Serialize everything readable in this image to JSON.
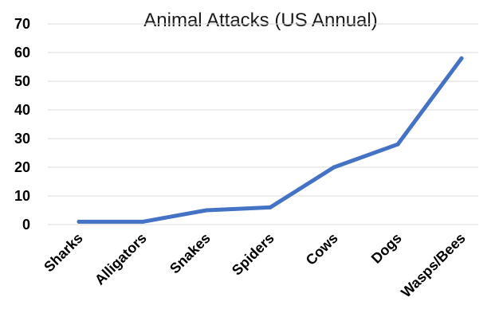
{
  "chart_data": {
    "type": "line",
    "title": "Animal Attacks (US Annual)",
    "xlabel": "",
    "ylabel": "",
    "categories": [
      "Sharks",
      "Alligators",
      "Snakes",
      "Spiders",
      "Cows",
      "Dogs",
      "Wasps/Bees"
    ],
    "series": [
      {
        "values": [
          1,
          1,
          5,
          6,
          20,
          28,
          58
        ],
        "color": "#4472C4"
      }
    ],
    "ylim": [
      0,
      70
    ],
    "yticks": [
      0,
      10,
      20,
      30,
      40,
      50,
      60,
      70
    ],
    "grid": true,
    "legend": "none"
  }
}
